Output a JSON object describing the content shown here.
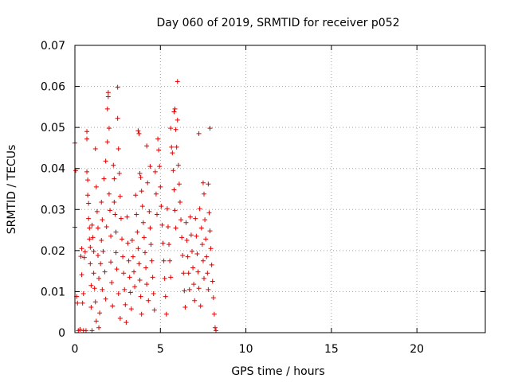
{
  "chart_data": {
    "type": "scatter",
    "title": "Day 060 of 2019, SRMTID for receiver p052",
    "xlabel": "GPS time / hours",
    "ylabel": "SRMTID / TECUs",
    "xlim": [
      0,
      24
    ],
    "ylim": [
      0,
      0.07
    ],
    "xticks": [
      0,
      5,
      10,
      15,
      20
    ],
    "xtick_labels": [
      "0",
      "5",
      "10",
      "15",
      "20"
    ],
    "yticks": [
      0,
      0.01,
      0.02,
      0.03,
      0.04,
      0.05,
      0.06,
      0.07
    ],
    "ytick_labels": [
      "0",
      "0.01",
      "0.02",
      "0.03",
      "0.04",
      "0.05",
      "0.06",
      "0.07"
    ],
    "grid": true,
    "marker": "+",
    "color": "#e00000",
    "series": [
      {
        "name": "SRMTID",
        "points": [
          [
            0.0,
            0.0462
          ],
          [
            0.0,
            0.0257
          ],
          [
            0.05,
            0.0395
          ],
          [
            0.1,
            0.0088
          ],
          [
            0.15,
            0.0072
          ],
          [
            0.2,
            0.0005
          ],
          [
            0.3,
            0.0008
          ],
          [
            0.35,
            0.0186
          ],
          [
            0.4,
            0.0205
          ],
          [
            0.4,
            0.0141
          ],
          [
            0.45,
            0.0072
          ],
          [
            0.5,
            0.0005
          ],
          [
            0.5,
            0.0095
          ],
          [
            0.55,
            0.0183
          ],
          [
            0.6,
            0.0197
          ],
          [
            0.65,
            0.0005
          ],
          [
            0.7,
            0.049
          ],
          [
            0.7,
            0.0472
          ],
          [
            0.7,
            0.0392
          ],
          [
            0.75,
            0.0372
          ],
          [
            0.75,
            0.0335
          ],
          [
            0.8,
            0.0315
          ],
          [
            0.8,
            0.0278
          ],
          [
            0.85,
            0.0255
          ],
          [
            0.85,
            0.0228
          ],
          [
            0.9,
            0.0208
          ],
          [
            0.9,
            0.0168
          ],
          [
            0.95,
            0.0115
          ],
          [
            0.95,
            0.0062
          ],
          [
            1.0,
            0.0005
          ],
          [
            1.0,
            0.0262
          ],
          [
            1.05,
            0.0232
          ],
          [
            1.1,
            0.0198
          ],
          [
            1.1,
            0.0145
          ],
          [
            1.15,
            0.0108
          ],
          [
            1.2,
            0.0448
          ],
          [
            1.2,
            0.0075
          ],
          [
            1.25,
            0.0355
          ],
          [
            1.25,
            0.0028
          ],
          [
            1.3,
            0.0295
          ],
          [
            1.35,
            0.0255
          ],
          [
            1.35,
            0.0188
          ],
          [
            1.4,
            0.0132
          ],
          [
            1.4,
            0.0012
          ],
          [
            1.45,
            0.0048
          ],
          [
            1.5,
            0.0168
          ],
          [
            1.55,
            0.0318
          ],
          [
            1.55,
            0.0225
          ],
          [
            1.6,
            0.0275
          ],
          [
            1.6,
            0.0105
          ],
          [
            1.65,
            0.0198
          ],
          [
            1.7,
            0.0375
          ],
          [
            1.75,
            0.0148
          ],
          [
            1.8,
            0.0082
          ],
          [
            1.8,
            0.0418
          ],
          [
            1.85,
            0.0258
          ],
          [
            1.9,
            0.0465
          ],
          [
            1.9,
            0.0545
          ],
          [
            1.95,
            0.0585
          ],
          [
            1.95,
            0.0575
          ],
          [
            2.0,
            0.0498
          ],
          [
            2.0,
            0.0338
          ],
          [
            2.05,
            0.0298
          ],
          [
            2.1,
            0.0235
          ],
          [
            2.1,
            0.0172
          ],
          [
            2.15,
            0.0122
          ],
          [
            2.2,
            0.0065
          ],
          [
            2.25,
            0.0408
          ],
          [
            2.3,
            0.0375
          ],
          [
            2.3,
            0.0318
          ],
          [
            2.35,
            0.0288
          ],
          [
            2.4,
            0.0245
          ],
          [
            2.4,
            0.0195
          ],
          [
            2.45,
            0.0155
          ],
          [
            2.5,
            0.0598
          ],
          [
            2.5,
            0.0522
          ],
          [
            2.55,
            0.0448
          ],
          [
            2.55,
            0.0095
          ],
          [
            2.6,
            0.0388
          ],
          [
            2.65,
            0.0332
          ],
          [
            2.65,
            0.0035
          ],
          [
            2.7,
            0.0278
          ],
          [
            2.75,
            0.0228
          ],
          [
            2.8,
            0.0185
          ],
          [
            2.85,
            0.0145
          ],
          [
            2.9,
            0.0105
          ],
          [
            2.95,
            0.0068
          ],
          [
            3.0,
            0.0025
          ],
          [
            3.05,
            0.0282
          ],
          [
            3.1,
            0.0218
          ],
          [
            3.15,
            0.0175
          ],
          [
            3.2,
            0.0135
          ],
          [
            3.25,
            0.0098
          ],
          [
            3.3,
            0.0058
          ],
          [
            3.35,
            0.0225
          ],
          [
            3.4,
            0.0185
          ],
          [
            3.45,
            0.0148
          ],
          [
            3.5,
            0.0112
          ],
          [
            3.55,
            0.0335
          ],
          [
            3.6,
            0.0288
          ],
          [
            3.65,
            0.0245
          ],
          [
            3.7,
            0.0492
          ],
          [
            3.7,
            0.0205
          ],
          [
            3.75,
            0.0485
          ],
          [
            3.75,
            0.0168
          ],
          [
            3.8,
            0.0388
          ],
          [
            3.8,
            0.0128
          ],
          [
            3.85,
            0.0378
          ],
          [
            3.85,
            0.0088
          ],
          [
            3.9,
            0.0345
          ],
          [
            3.9,
            0.0045
          ],
          [
            3.95,
            0.0308
          ],
          [
            4.0,
            0.0268
          ],
          [
            4.05,
            0.0232
          ],
          [
            4.1,
            0.0195
          ],
          [
            4.15,
            0.0158
          ],
          [
            4.2,
            0.0455
          ],
          [
            4.2,
            0.0118
          ],
          [
            4.25,
            0.0365
          ],
          [
            4.3,
            0.0078
          ],
          [
            4.35,
            0.0295
          ],
          [
            4.4,
            0.0405
          ],
          [
            4.4,
            0.0255
          ],
          [
            4.45,
            0.0215
          ],
          [
            4.5,
            0.0175
          ],
          [
            4.55,
            0.0135
          ],
          [
            4.6,
            0.0095
          ],
          [
            4.65,
            0.0055
          ],
          [
            4.7,
            0.0392
          ],
          [
            4.75,
            0.0338
          ],
          [
            4.8,
            0.0288
          ],
          [
            4.85,
            0.0472
          ],
          [
            4.9,
            0.0445
          ],
          [
            4.95,
            0.0405
          ],
          [
            5.0,
            0.0355
          ],
          [
            5.05,
            0.0308
          ],
          [
            5.1,
            0.0262
          ],
          [
            5.15,
            0.0218
          ],
          [
            5.2,
            0.0175
          ],
          [
            5.25,
            0.0132
          ],
          [
            5.3,
            0.0088
          ],
          [
            5.35,
            0.0045
          ],
          [
            5.4,
            0.0302
          ],
          [
            5.45,
            0.0258
          ],
          [
            5.5,
            0.0215
          ],
          [
            5.55,
            0.0175
          ],
          [
            5.6,
            0.0498
          ],
          [
            5.6,
            0.0135
          ],
          [
            5.65,
            0.0452
          ],
          [
            5.7,
            0.0438
          ],
          [
            5.75,
            0.0395
          ],
          [
            5.8,
            0.0348
          ],
          [
            5.8,
            0.0538
          ],
          [
            5.85,
            0.0545
          ],
          [
            5.85,
            0.0298
          ],
          [
            5.9,
            0.0495
          ],
          [
            5.9,
            0.0255
          ],
          [
            5.95,
            0.0452
          ],
          [
            6.0,
            0.0612
          ],
          [
            6.0,
            0.0518
          ],
          [
            6.05,
            0.0408
          ],
          [
            6.1,
            0.0362
          ],
          [
            6.15,
            0.0318
          ],
          [
            6.2,
            0.0275
          ],
          [
            6.25,
            0.0232
          ],
          [
            6.3,
            0.0188
          ],
          [
            6.35,
            0.0145
          ],
          [
            6.4,
            0.0102
          ],
          [
            6.45,
            0.0062
          ],
          [
            6.5,
            0.0268
          ],
          [
            6.55,
            0.0225
          ],
          [
            6.6,
            0.0185
          ],
          [
            6.65,
            0.0145
          ],
          [
            6.7,
            0.0105
          ],
          [
            6.75,
            0.0282
          ],
          [
            6.8,
            0.0238
          ],
          [
            6.85,
            0.0198
          ],
          [
            6.9,
            0.0158
          ],
          [
            6.95,
            0.0118
          ],
          [
            7.0,
            0.0078
          ],
          [
            7.05,
            0.0278
          ],
          [
            7.1,
            0.0235
          ],
          [
            7.15,
            0.0192
          ],
          [
            7.2,
            0.0148
          ],
          [
            7.25,
            0.0485
          ],
          [
            7.25,
            0.0108
          ],
          [
            7.3,
            0.0302
          ],
          [
            7.35,
            0.0065
          ],
          [
            7.4,
            0.0255
          ],
          [
            7.45,
            0.0215
          ],
          [
            7.5,
            0.0365
          ],
          [
            7.5,
            0.0175
          ],
          [
            7.55,
            0.0338
          ],
          [
            7.55,
            0.0132
          ],
          [
            7.6,
            0.0275
          ],
          [
            7.65,
            0.0228
          ],
          [
            7.7,
            0.0185
          ],
          [
            7.75,
            0.0145
          ],
          [
            7.8,
            0.0362
          ],
          [
            7.8,
            0.0105
          ],
          [
            7.85,
            0.0292
          ],
          [
            7.9,
            0.0498
          ],
          [
            7.9,
            0.0248
          ],
          [
            7.95,
            0.0205
          ],
          [
            8.0,
            0.0165
          ],
          [
            8.05,
            0.0125
          ],
          [
            8.1,
            0.0085
          ],
          [
            8.15,
            0.0045
          ],
          [
            8.2,
            0.0012
          ],
          [
            8.25,
            0.0005
          ]
        ]
      }
    ]
  }
}
